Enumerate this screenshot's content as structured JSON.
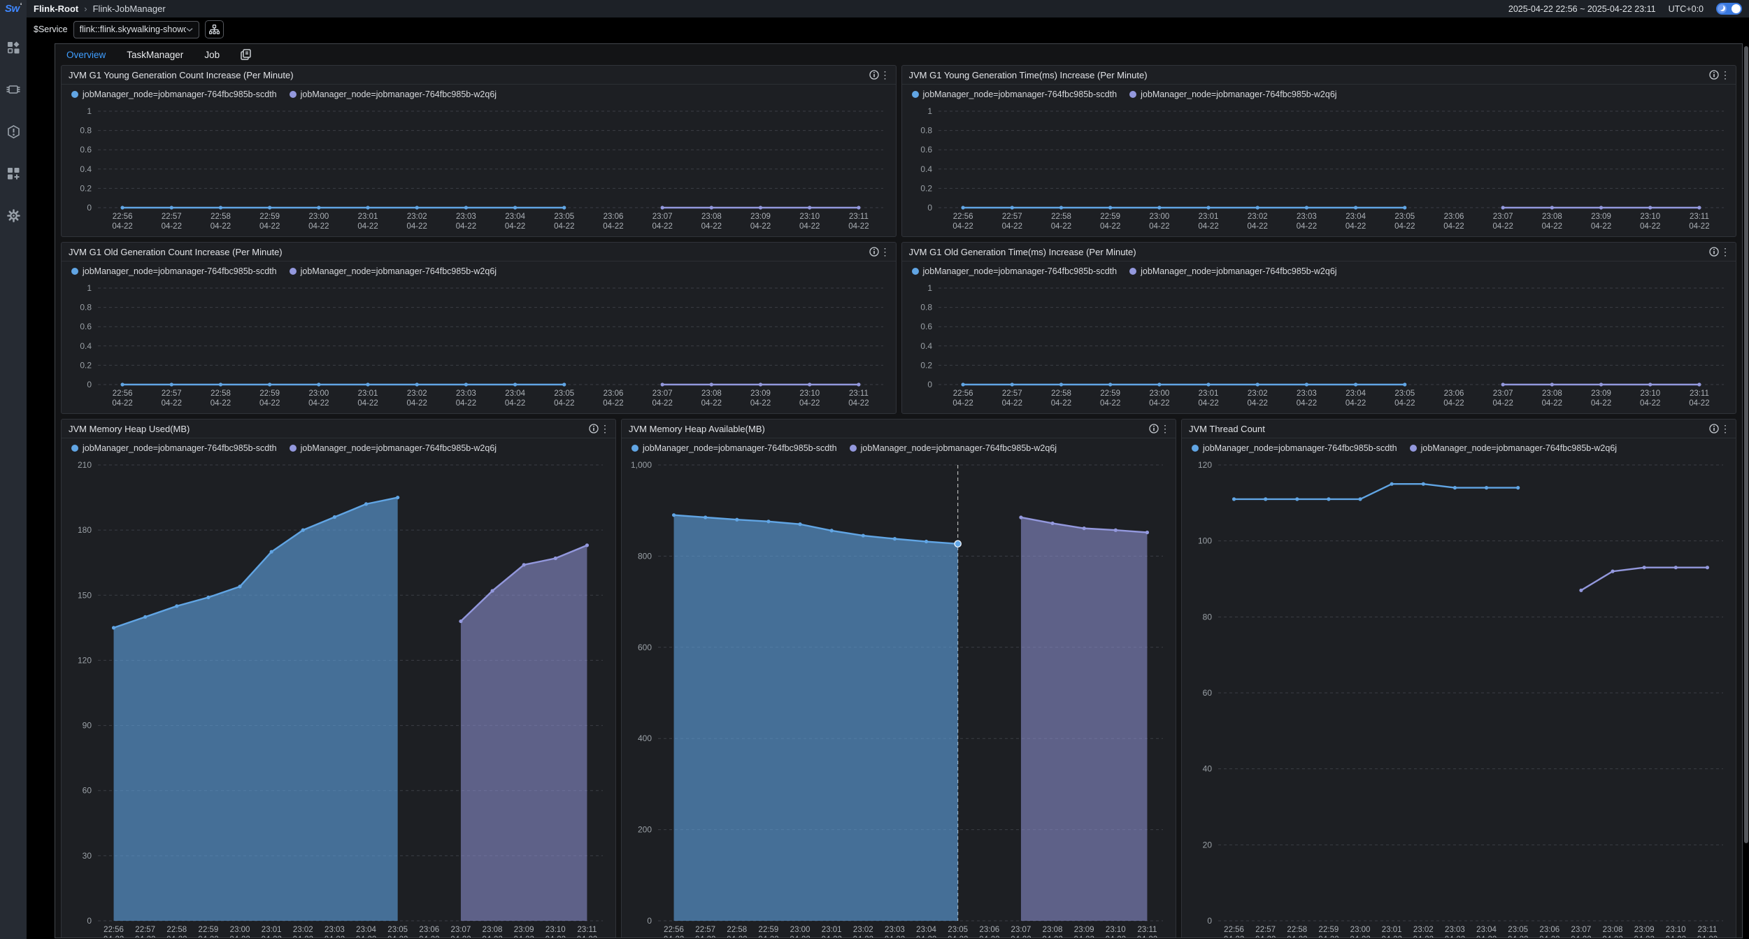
{
  "topbar": {
    "logo": "Sw",
    "breadcrumb": {
      "root": "Flink-Root",
      "separator": "›",
      "current": "Flink-JobManager"
    },
    "time_range": "2025-04-22 22:56 ~ 2025-04-22 23:11",
    "timezone": "UTC+0:0"
  },
  "service_bar": {
    "label": "$Service",
    "selected_value": "flink::flink.skywalking-showc..."
  },
  "tabs": [
    {
      "label": "Overview",
      "active": true
    },
    {
      "label": "TaskManager",
      "active": false
    },
    {
      "label": "Job",
      "active": false
    }
  ],
  "sidebar": {
    "items": [
      {
        "icon": "marketplace-icon"
      },
      {
        "icon": "services-icon"
      },
      {
        "icon": "alerting-icon"
      },
      {
        "icon": "new-dashboard-icon"
      },
      {
        "icon": "settings-icon"
      }
    ]
  },
  "colors": {
    "series_blue": "#61a5e4",
    "series_purple": "#9398dd",
    "accent_tab": "#3f9eff",
    "toggle_blue": "#3a79df"
  },
  "chart_data": {
    "shared_x_times": [
      "22:56",
      "22:57",
      "22:58",
      "22:59",
      "23:00",
      "23:01",
      "23:02",
      "23:03",
      "23:04",
      "23:05",
      "23:06",
      "23:07",
      "23:08",
      "23:09",
      "23:10",
      "23:11"
    ],
    "shared_x_date": "04-22",
    "charts": [
      {
        "title": "JVM G1 Young Generation Count Increase (Per Minute)",
        "type": "line",
        "ylim": [
          0,
          1
        ],
        "y_ticks": [
          0,
          0.2,
          0.4,
          0.6,
          0.8,
          1
        ],
        "grid": true,
        "legend_position": "top-left",
        "xlabel": "",
        "ylabel": "",
        "series": [
          {
            "name": "jobManager_node=jobmanager-764fbc985b-scdth",
            "color": "#61a5e4",
            "start_index": 0,
            "values": [
              0,
              0,
              0,
              0,
              0,
              0,
              0,
              0,
              0,
              0
            ]
          },
          {
            "name": "jobManager_node=jobmanager-764fbc985b-w2q6j",
            "color": "#9398dd",
            "start_index": 11,
            "values": [
              0,
              0,
              0,
              0,
              0
            ]
          }
        ]
      },
      {
        "title": "JVM G1 Young Generation Time(ms) Increase (Per Minute)",
        "type": "line",
        "ylim": [
          0,
          1
        ],
        "y_ticks": [
          0,
          0.2,
          0.4,
          0.6,
          0.8,
          1
        ],
        "grid": true,
        "legend_position": "top-left",
        "xlabel": "",
        "ylabel": "",
        "series": [
          {
            "name": "jobManager_node=jobmanager-764fbc985b-scdth",
            "color": "#61a5e4",
            "start_index": 0,
            "values": [
              0,
              0,
              0,
              0,
              0,
              0,
              0,
              0,
              0,
              0
            ]
          },
          {
            "name": "jobManager_node=jobmanager-764fbc985b-w2q6j",
            "color": "#9398dd",
            "start_index": 11,
            "values": [
              0,
              0,
              0,
              0,
              0
            ]
          }
        ]
      },
      {
        "title": "JVM G1 Old Generation Count Increase (Per Minute)",
        "type": "line",
        "ylim": [
          0,
          1
        ],
        "y_ticks": [
          0,
          0.2,
          0.4,
          0.6,
          0.8,
          1
        ],
        "grid": true,
        "legend_position": "top-left",
        "xlabel": "",
        "ylabel": "",
        "series": [
          {
            "name": "jobManager_node=jobmanager-764fbc985b-scdth",
            "color": "#61a5e4",
            "start_index": 0,
            "values": [
              0,
              0,
              0,
              0,
              0,
              0,
              0,
              0,
              0,
              0
            ]
          },
          {
            "name": "jobManager_node=jobmanager-764fbc985b-w2q6j",
            "color": "#9398dd",
            "start_index": 11,
            "values": [
              0,
              0,
              0,
              0,
              0
            ]
          }
        ]
      },
      {
        "title": "JVM G1 Old Generation Time(ms) Increase (Per Minute)",
        "type": "line",
        "ylim": [
          0,
          1
        ],
        "y_ticks": [
          0,
          0.2,
          0.4,
          0.6,
          0.8,
          1
        ],
        "grid": true,
        "legend_position": "top-left",
        "xlabel": "",
        "ylabel": "",
        "series": [
          {
            "name": "jobManager_node=jobmanager-764fbc985b-scdth",
            "color": "#61a5e4",
            "start_index": 0,
            "values": [
              0,
              0,
              0,
              0,
              0,
              0,
              0,
              0,
              0,
              0
            ]
          },
          {
            "name": "jobManager_node=jobmanager-764fbc985b-w2q6j",
            "color": "#9398dd",
            "start_index": 11,
            "values": [
              0,
              0,
              0,
              0,
              0
            ]
          }
        ]
      },
      {
        "title": "JVM Memory Heap Used(MB)",
        "type": "area",
        "ylim": [
          0,
          210
        ],
        "y_ticks": [
          0,
          30,
          60,
          90,
          120,
          150,
          180,
          210
        ],
        "grid": true,
        "legend_position": "top-left",
        "xlabel": "",
        "ylabel": "",
        "series": [
          {
            "name": "jobManager_node=jobmanager-764fbc985b-scdth",
            "color": "#61a5e4",
            "fill_opacity": 0.6,
            "start_index": 0,
            "values": [
              135,
              140,
              145,
              149,
              154,
              170,
              180,
              186,
              192,
              195
            ]
          },
          {
            "name": "jobManager_node=jobmanager-764fbc985b-w2q6j",
            "color": "#9398dd",
            "fill_opacity": 0.55,
            "start_index": 11,
            "values": [
              138,
              152,
              164,
              167,
              173
            ]
          }
        ]
      },
      {
        "title": "JVM Memory Heap Available(MB)",
        "type": "area",
        "ylim": [
          0,
          1000
        ],
        "y_ticks": [
          0,
          200,
          400,
          600,
          800,
          1000
        ],
        "grid": true,
        "legend_position": "top-left",
        "xlabel": "",
        "ylabel": "",
        "crosshair_index": 9,
        "series": [
          {
            "name": "jobManager_node=jobmanager-764fbc985b-scdth",
            "color": "#61a5e4",
            "fill_opacity": 0.6,
            "start_index": 0,
            "values": [
              890,
              885,
              880,
              876,
              870,
              856,
              845,
              838,
              832,
              827
            ]
          },
          {
            "name": "jobManager_node=jobmanager-764fbc985b-w2q6j",
            "color": "#9398dd",
            "fill_opacity": 0.55,
            "start_index": 11,
            "values": [
              885,
              872,
              861,
              857,
              852
            ]
          }
        ]
      },
      {
        "title": "JVM Thread Count",
        "type": "line",
        "ylim": [
          0,
          120
        ],
        "y_ticks": [
          0,
          20,
          40,
          60,
          80,
          100,
          120
        ],
        "grid": true,
        "legend_position": "top-left",
        "xlabel": "",
        "ylabel": "",
        "series": [
          {
            "name": "jobManager_node=jobmanager-764fbc985b-scdth",
            "color": "#61a5e4",
            "start_index": 0,
            "values": [
              111,
              111,
              111,
              111,
              111,
              115,
              115,
              114,
              114,
              114
            ]
          },
          {
            "name": "jobManager_node=jobmanager-764fbc985b-w2q6j",
            "color": "#9398dd",
            "start_index": 11,
            "values": [
              87,
              92,
              93,
              93,
              93
            ]
          }
        ]
      }
    ]
  }
}
